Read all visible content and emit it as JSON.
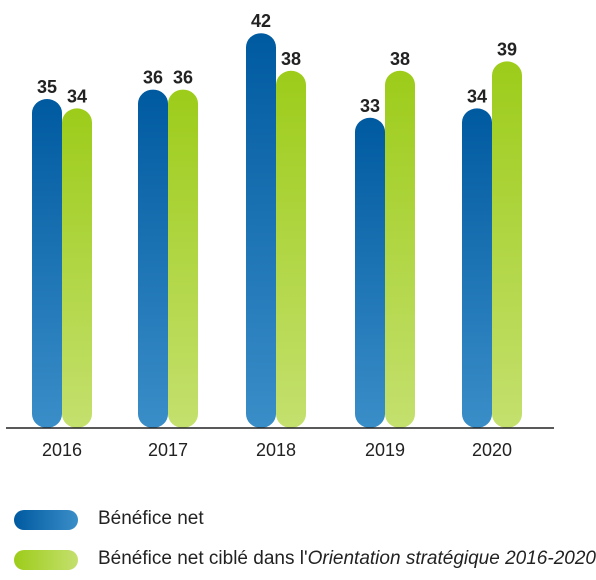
{
  "chart_data": {
    "type": "bar",
    "categories": [
      "2016",
      "2017",
      "2018",
      "2019",
      "2020"
    ],
    "series": [
      {
        "name": "Bénéfice net",
        "values": [
          35,
          36,
          42,
          33,
          34
        ]
      },
      {
        "name": "Bénéfice net ciblé dans l'Orientation stratégique 2016-2020",
        "values": [
          34,
          36,
          38,
          38,
          39
        ]
      }
    ],
    "title": "",
    "xlabel": "",
    "ylabel": "",
    "ylim": [
      0,
      42
    ],
    "grid": false,
    "legend_position": "bottom-left"
  },
  "legend": {
    "net_label": "Bénéfice net",
    "target_prefix": "Bénéfice net ciblé dans l'",
    "target_italic": "Orientation stratégique 2016-2020"
  },
  "colors": {
    "series1_top": "#005aa0",
    "series1_bottom": "#3a8ec8",
    "series2_top": "#9dcc1a",
    "series2_bottom": "#c4e06e",
    "value_label": "#222222",
    "axis": "#222222"
  }
}
